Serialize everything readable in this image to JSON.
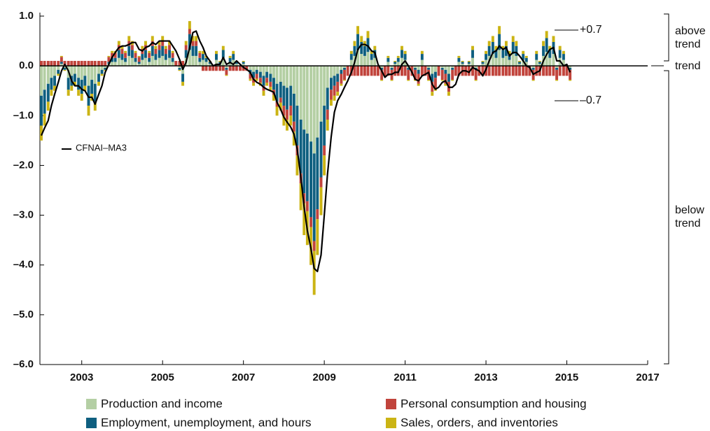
{
  "chart_data": {
    "type": "bar",
    "stacked": true,
    "x": [
      2002,
      2002.08,
      2002.17,
      2002.25,
      2002.33,
      2002.42,
      2002.5,
      2002.58,
      2002.67,
      2002.75,
      2002.83,
      2002.92,
      2003,
      2003.08,
      2003.17,
      2003.25,
      2003.33,
      2003.42,
      2003.5,
      2003.58,
      2003.67,
      2003.75,
      2003.83,
      2003.92,
      2004,
      2004.08,
      2004.17,
      2004.25,
      2004.33,
      2004.42,
      2004.5,
      2004.58,
      2004.67,
      2004.75,
      2004.83,
      2004.92,
      2005,
      2005.08,
      2005.17,
      2005.25,
      2005.33,
      2005.42,
      2005.5,
      2005.58,
      2005.67,
      2005.75,
      2005.83,
      2005.92,
      2006,
      2006.08,
      2006.17,
      2006.25,
      2006.33,
      2006.42,
      2006.5,
      2006.58,
      2006.67,
      2006.75,
      2006.83,
      2006.92,
      2007,
      2007.08,
      2007.17,
      2007.25,
      2007.33,
      2007.42,
      2007.5,
      2007.58,
      2007.67,
      2007.75,
      2007.83,
      2007.92,
      2008,
      2008.08,
      2008.17,
      2008.25,
      2008.33,
      2008.42,
      2008.5,
      2008.58,
      2008.67,
      2008.75,
      2008.83,
      2008.92,
      2009,
      2009.08,
      2009.17,
      2009.25,
      2009.33,
      2009.42,
      2009.5,
      2009.58,
      2009.67,
      2009.75,
      2009.83,
      2009.92,
      2010,
      2010.08,
      2010.17,
      2010.25,
      2010.33,
      2010.42,
      2010.5,
      2010.58,
      2010.67,
      2010.75,
      2010.83,
      2010.92,
      2011,
      2011.08,
      2011.17,
      2011.25,
      2011.33,
      2011.42,
      2011.5,
      2011.58,
      2011.67,
      2011.75,
      2011.83,
      2011.92,
      2012,
      2012.08,
      2012.17,
      2012.25,
      2012.33,
      2012.42,
      2012.5,
      2012.58,
      2012.67,
      2012.75,
      2012.83,
      2012.92,
      2013,
      2013.08,
      2013.17,
      2013.25,
      2013.33,
      2013.42,
      2013.5,
      2013.58,
      2013.67,
      2013.75,
      2013.83,
      2013.92,
      2014,
      2014.08,
      2014.17,
      2014.25,
      2014.33,
      2014.42,
      2014.5,
      2014.58,
      2014.67,
      2014.75,
      2014.83,
      2014.92,
      2015,
      2015.08
    ],
    "series": [
      {
        "name": "Production and income",
        "color": "#b4cfa4",
        "values": [
          -0.6,
          -0.48,
          -0.36,
          -0.24,
          -0.2,
          -0.08,
          0.04,
          -0.04,
          -0.24,
          -0.2,
          -0.16,
          -0.24,
          -0.28,
          -0.2,
          -0.4,
          -0.28,
          -0.36,
          -0.16,
          -0.08,
          -0.04,
          0.04,
          0.08,
          0.08,
          0.16,
          0.12,
          0.08,
          0.2,
          0.16,
          0.08,
          0.04,
          0.12,
          0.16,
          0.08,
          0.2,
          0.12,
          0.16,
          0.2,
          0.12,
          0.16,
          0.08,
          0,
          -0.04,
          -0.16,
          0.16,
          0.32,
          0.2,
          0.2,
          0.08,
          0.12,
          0.08,
          0.04,
          0,
          0.12,
          0.04,
          0.16,
          -0.04,
          0.08,
          0.12,
          0.04,
          0,
          0.04,
          0,
          -0.08,
          -0.12,
          -0.08,
          -0.12,
          -0.2,
          -0.12,
          -0.16,
          -0.24,
          -0.36,
          -0.32,
          -0.4,
          -0.44,
          -0.4,
          -0.56,
          -0.8,
          -1.08,
          -1.28,
          -1.36,
          -1.52,
          -1.76,
          -1.44,
          -1.12,
          -0.8,
          -0.44,
          -0.24,
          -0.2,
          -0.16,
          -0.08,
          -0.04,
          0,
          0.12,
          0.2,
          0.32,
          0.24,
          0.2,
          0.28,
          0.12,
          0.16,
          0,
          -0.04,
          0,
          0.08,
          -0.04,
          0.04,
          0.08,
          0.16,
          0.12,
          -0.04,
          0,
          -0.04,
          -0.08,
          0.12,
          0,
          -0.04,
          -0.16,
          -0.12,
          0,
          -0.04,
          -0.08,
          -0.16,
          -0.04,
          0,
          0.08,
          0.04,
          0,
          0.04,
          0.16,
          -0.04,
          0,
          0.04,
          0.12,
          0.2,
          0.24,
          0.16,
          0.32,
          0.16,
          0.2,
          0.12,
          0.24,
          0.2,
          0.04,
          0.12,
          0.08,
          0,
          -0.04,
          0.12,
          0.04,
          0.2,
          0.28,
          0.16,
          0.24,
          -0.04,
          0.16,
          0.12,
          0,
          -0.04
        ]
      },
      {
        "name": "Employment, unemployment, and hours",
        "color": "#0f5f80",
        "values": [
          -0.6,
          -0.48,
          -0.36,
          -0.24,
          -0.2,
          -0.08,
          0.04,
          -0.04,
          -0.24,
          -0.2,
          -0.16,
          -0.24,
          -0.28,
          -0.2,
          -0.4,
          -0.28,
          -0.36,
          -0.16,
          -0.08,
          -0.04,
          0.04,
          0.08,
          0.08,
          0.16,
          0.12,
          0.08,
          0.2,
          0.16,
          0.08,
          0.04,
          0.12,
          0.16,
          0.08,
          0.2,
          0.12,
          0.16,
          0.2,
          0.12,
          0.16,
          0.08,
          0,
          -0.04,
          -0.16,
          0.16,
          0.32,
          0.2,
          0.2,
          0.08,
          0.12,
          0.08,
          0.04,
          0,
          0.12,
          0.04,
          0.16,
          -0.04,
          0.08,
          0.12,
          0.04,
          0,
          0.04,
          0,
          -0.08,
          -0.12,
          -0.08,
          -0.12,
          -0.2,
          -0.12,
          -0.16,
          -0.24,
          -0.36,
          -0.32,
          -0.4,
          -0.44,
          -0.4,
          -0.56,
          -0.8,
          -1.08,
          -1.28,
          -1.36,
          -1.52,
          -1.76,
          -1.44,
          -1.12,
          -0.8,
          -0.44,
          -0.24,
          -0.2,
          -0.16,
          -0.08,
          -0.04,
          0,
          0.12,
          0.2,
          0.32,
          0.24,
          0.2,
          0.28,
          0.12,
          0.16,
          0,
          -0.04,
          0,
          0.08,
          -0.04,
          0.04,
          0.08,
          0.16,
          0.12,
          -0.04,
          0,
          -0.04,
          -0.08,
          0.12,
          0,
          -0.04,
          -0.16,
          -0.12,
          0,
          -0.04,
          -0.08,
          -0.16,
          -0.04,
          0,
          0.08,
          0.04,
          0,
          0.04,
          0.16,
          -0.04,
          0,
          0.04,
          0.12,
          0.2,
          0.24,
          0.16,
          0.32,
          0.16,
          0.2,
          0.12,
          0.24,
          0.2,
          0.04,
          0.12,
          0.08,
          0,
          -0.04,
          0.12,
          0.04,
          0.2,
          0.28,
          0.16,
          0.24,
          -0.04,
          0.16,
          0.12,
          0,
          -0.04
        ]
      },
      {
        "name": "Personal consumption and housing",
        "color": "#c1443c",
        "values": [
          0.1,
          0.1,
          0.1,
          0.1,
          0.1,
          0.1,
          0.1,
          0.1,
          0.1,
          0.1,
          0.1,
          0.1,
          0.1,
          0.1,
          0.1,
          0.1,
          0.1,
          0.1,
          0.1,
          0.1,
          0.1,
          0.1,
          0.1,
          0.1,
          0.1,
          0.1,
          0.1,
          0.1,
          0.1,
          0.1,
          0.1,
          0.1,
          0.1,
          0.1,
          0.1,
          0.1,
          0.1,
          0.1,
          0.1,
          0.1,
          0.1,
          0.1,
          0.1,
          0.1,
          0.1,
          0.1,
          0.1,
          0.1,
          -0.1,
          -0.1,
          -0.1,
          -0.1,
          -0.1,
          -0.1,
          -0.1,
          -0.1,
          -0.1,
          -0.1,
          -0.1,
          -0.1,
          -0.1,
          -0.1,
          -0.1,
          -0.1,
          -0.1,
          -0.1,
          -0.1,
          -0.1,
          -0.1,
          -0.1,
          -0.1,
          -0.1,
          -0.2,
          -0.2,
          -0.2,
          -0.2,
          -0.2,
          -0.2,
          -0.2,
          -0.2,
          -0.2,
          -0.2,
          -0.2,
          -0.2,
          -0.2,
          -0.2,
          -0.2,
          -0.2,
          -0.2,
          -0.2,
          -0.2,
          -0.2,
          -0.2,
          -0.2,
          -0.2,
          -0.2,
          -0.2,
          -0.2,
          -0.2,
          -0.2,
          -0.2,
          -0.2,
          -0.2,
          -0.2,
          -0.2,
          -0.2,
          -0.2,
          -0.2,
          -0.2,
          -0.2,
          -0.2,
          -0.2,
          -0.2,
          -0.2,
          -0.2,
          -0.2,
          -0.2,
          -0.2,
          -0.2,
          -0.2,
          -0.2,
          -0.2,
          -0.2,
          -0.2,
          -0.2,
          -0.2,
          -0.2,
          -0.2,
          -0.2,
          -0.2,
          -0.2,
          -0.2,
          -0.2,
          -0.2,
          -0.2,
          -0.2,
          -0.2,
          -0.2,
          -0.2,
          -0.2,
          -0.2,
          -0.2,
          -0.2,
          -0.2,
          -0.2,
          -0.2,
          -0.2,
          -0.2,
          -0.2,
          -0.2,
          -0.2,
          -0.2,
          -0.2,
          -0.2,
          -0.2,
          -0.2,
          -0.2,
          -0.2
        ]
      },
      {
        "name": "Sales, orders, and inventories",
        "color": "#cbb414",
        "values": [
          -0.3,
          -0.24,
          -0.18,
          -0.12,
          -0.1,
          -0.04,
          0.02,
          -0.02,
          -0.12,
          -0.1,
          -0.08,
          -0.12,
          -0.14,
          -0.1,
          -0.2,
          -0.14,
          -0.18,
          -0.08,
          -0.04,
          -0.02,
          0.02,
          0.04,
          0.04,
          0.08,
          0.06,
          0.04,
          0.1,
          0.08,
          0.04,
          0.02,
          0.06,
          0.08,
          0.04,
          0.1,
          0.06,
          0.08,
          0.1,
          0.06,
          0.08,
          0.04,
          0,
          -0.02,
          -0.08,
          0.08,
          0.16,
          0.1,
          0.1,
          0.04,
          0.06,
          0.04,
          0.02,
          0,
          0.06,
          0.02,
          0.08,
          -0.02,
          0.04,
          0.06,
          0.02,
          0,
          0.02,
          0,
          -0.04,
          -0.06,
          -0.04,
          -0.06,
          -0.1,
          -0.06,
          -0.08,
          -0.12,
          -0.18,
          -0.16,
          -0.2,
          -0.22,
          -0.2,
          -0.28,
          -0.4,
          -0.54,
          -0.64,
          -0.68,
          -0.76,
          -0.88,
          -0.72,
          -0.56,
          -0.4,
          -0.22,
          -0.12,
          -0.1,
          -0.08,
          -0.04,
          -0.02,
          0,
          0.06,
          0.1,
          0.16,
          0.12,
          0.1,
          0.14,
          0.06,
          0.08,
          0,
          -0.02,
          0,
          0.04,
          -0.02,
          0.02,
          0.04,
          0.08,
          0.06,
          -0.02,
          0,
          -0.02,
          -0.04,
          0.06,
          0,
          -0.02,
          -0.08,
          -0.06,
          0,
          -0.02,
          -0.04,
          -0.08,
          -0.02,
          0,
          0.04,
          0.02,
          0,
          0.02,
          0.08,
          -0.02,
          0,
          0.02,
          0.06,
          0.1,
          0.12,
          0.08,
          0.16,
          0.08,
          0.1,
          0.06,
          0.12,
          0.1,
          0.02,
          0.06,
          0.04,
          0,
          -0.02,
          0.06,
          0.02,
          0.1,
          0.14,
          0.08,
          0.12,
          -0.02,
          0.08,
          0.06,
          0,
          -0.02
        ]
      }
    ],
    "line": {
      "name": "CFNAI–MA3",
      "color": "#000000",
      "values": [
        -1.4,
        -1.25,
        -1.1,
        -0.8,
        -0.57,
        -0.33,
        -0.1,
        0.03,
        -0.1,
        -0.3,
        -0.4,
        -0.4,
        -0.47,
        -0.5,
        -0.63,
        -0.63,
        -0.77,
        -0.57,
        -0.4,
        -0.13,
        0.03,
        0.17,
        0.27,
        0.37,
        0.4,
        0.4,
        0.43,
        0.47,
        0.47,
        0.33,
        0.3,
        0.37,
        0.4,
        0.47,
        0.43,
        0.5,
        0.5,
        0.5,
        0.5,
        0.4,
        0.3,
        0.13,
        -0.07,
        0.07,
        0.37,
        0.67,
        0.7,
        0.5,
        0.37,
        0.2,
        0.1,
        0,
        0.03,
        0.03,
        0.17,
        0.03,
        0.07,
        0.03,
        0.1,
        0.03,
        -0.03,
        -0.07,
        -0.13,
        -0.27,
        -0.33,
        -0.37,
        -0.43,
        -0.47,
        -0.5,
        -0.53,
        -0.73,
        -0.87,
        -1.03,
        -1.13,
        -1.23,
        -1.37,
        -1.67,
        -2.23,
        -2.83,
        -3.3,
        -3.67,
        -4.07,
        -4.13,
        -3.8,
        -3,
        -2.17,
        -1.43,
        -0.93,
        -0.7,
        -0.57,
        -0.43,
        -0.3,
        -0.13,
        0.07,
        0.33,
        0.43,
        0.43,
        0.4,
        0.3,
        0.27,
        0.03,
        -0.1,
        -0.23,
        -0.17,
        -0.17,
        -0.13,
        -0.13,
        0.03,
        0.1,
        0,
        -0.13,
        -0.27,
        -0.3,
        -0.2,
        -0.17,
        -0.13,
        -0.37,
        -0.47,
        -0.43,
        -0.33,
        -0.3,
        -0.43,
        -0.43,
        -0.37,
        -0.17,
        -0.1,
        -0.1,
        -0.13,
        -0.03,
        -0.07,
        -0.1,
        -0.2,
        -0.07,
        0.1,
        0.27,
        0.3,
        0.4,
        0.33,
        0.37,
        0.2,
        0.27,
        0.27,
        0.2,
        0.1,
        0,
        -0.03,
        -0.17,
        -0.13,
        -0.1,
        0.1,
        0.23,
        0.33,
        0.37,
        0.1,
        0.1,
        0,
        0.03,
        -0.13
      ]
    },
    "xlim": [
      2002,
      2017
    ],
    "xticks": [
      2003,
      2005,
      2007,
      2009,
      2011,
      2013,
      2015,
      2017
    ],
    "ylim": [
      -6,
      1
    ],
    "yticks": [
      {
        "value": 1,
        "label": "1.0"
      },
      {
        "value": 0,
        "label": "0.0"
      },
      {
        "value": -1,
        "label": "–1.0"
      },
      {
        "value": -2,
        "label": "–2.0"
      },
      {
        "value": -3,
        "label": "–3.0"
      },
      {
        "value": -4,
        "label": "–4.0"
      },
      {
        "value": -5,
        "label": "–5.0"
      },
      {
        "value": -6,
        "label": "–6.0"
      }
    ],
    "annotations": [
      "+0.7",
      "–0.7",
      "above trend",
      "trend",
      "below trend"
    ]
  }
}
